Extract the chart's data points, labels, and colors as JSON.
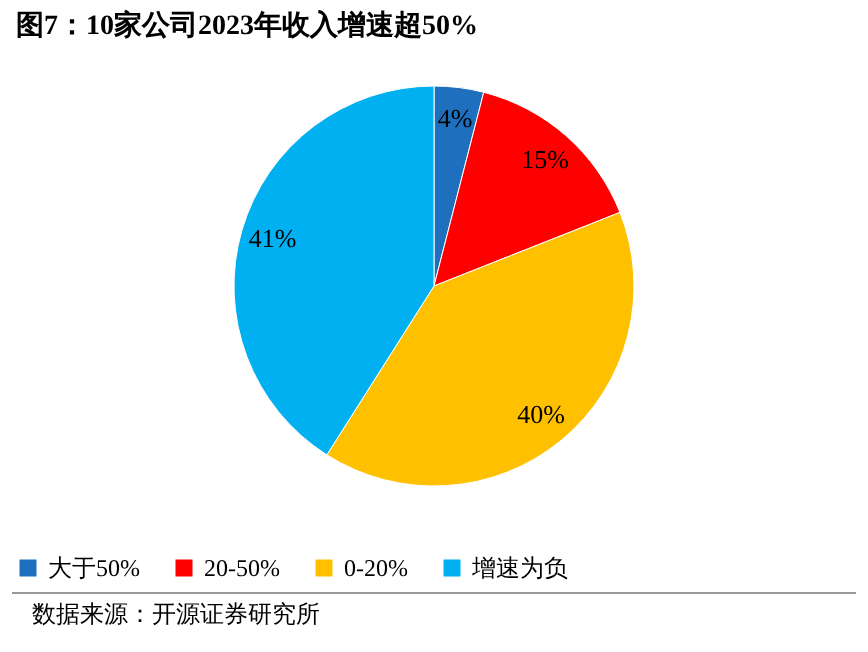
{
  "chart_data": {
    "type": "pie",
    "title": "图7：10家公司2023年收入增速超50%",
    "categories": [
      "大于50%",
      "20-50%",
      "0-20%",
      "增速为负"
    ],
    "values": [
      4,
      15,
      40,
      41
    ],
    "value_labels": [
      "4%",
      "15%",
      "40%",
      "41%"
    ],
    "colors": [
      "#1f6fbf",
      "#ff0000",
      "#ffc000",
      "#00b0f0"
    ],
    "legend": "bottom",
    "annotations": [
      "数据来源：开源证券研究所"
    ]
  }
}
